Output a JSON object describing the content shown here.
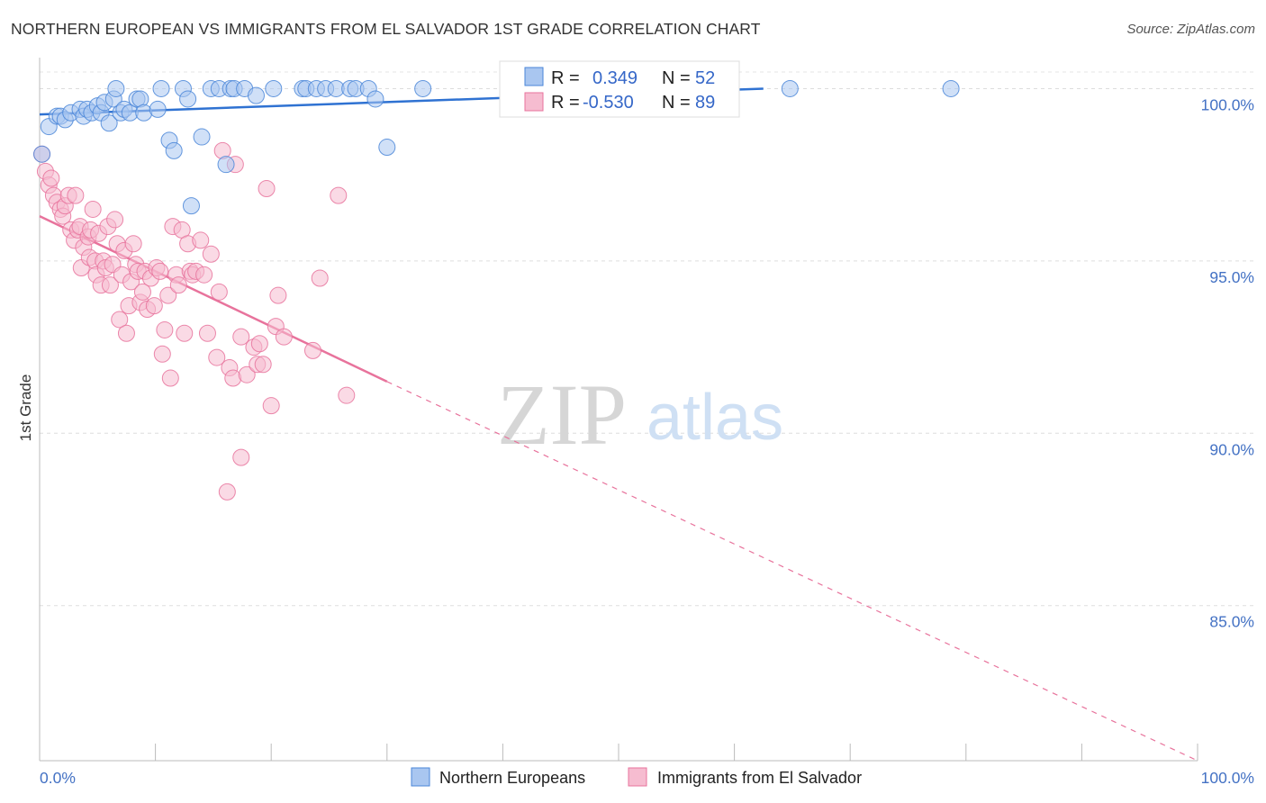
{
  "title": "NORTHERN EUROPEAN VS IMMIGRANTS FROM EL SALVADOR 1ST GRADE CORRELATION CHART",
  "source": "Source: ZipAtlas.com",
  "watermark": {
    "zip": "ZIP",
    "atlas": "atlas"
  },
  "colors": {
    "blue": "#4a86d8",
    "blue_fill": "#a9c6f0",
    "blue_line": "#2f72d2",
    "pink": "#e8739c",
    "pink_fill": "#f6bcd0",
    "pink_line": "#e8739c",
    "axis_text": "#4472c4",
    "grid": "#dddddd"
  },
  "chart_data": {
    "type": "scatter",
    "title": "NORTHERN EUROPEAN VS IMMIGRANTS FROM EL SALVADOR 1ST GRADE CORRELATION CHART",
    "xlabel": "",
    "ylabel": "1st Grade",
    "xlim": [
      0,
      100
    ],
    "ylim": [
      80.5,
      100.9
    ],
    "x_tick_labels": [
      "0.0%",
      "100.0%"
    ],
    "y_ticks": [
      85,
      90,
      95,
      100
    ],
    "y_tick_labels": [
      "85.0%",
      "90.0%",
      "95.0%",
      "100.0%"
    ],
    "grid": true,
    "legend_position": "top-center",
    "stats": [
      {
        "r_label": "R =",
        "r_value": "0.349",
        "n_label": "N =",
        "n_value": "52"
      },
      {
        "r_label": "R =",
        "r_value": "-0.530",
        "n_label": "N =",
        "n_value": "89"
      }
    ],
    "series": [
      {
        "name": "Northern Europeans",
        "color": "#4a86d8",
        "trend": {
          "x": [
            0,
            62.5
          ],
          "y": [
            99.25,
            100.0
          ],
          "dashed_to": null
        },
        "points": [
          [
            0.2,
            98.1
          ],
          [
            0.8,
            98.9
          ],
          [
            1.5,
            99.2
          ],
          [
            1.8,
            99.2
          ],
          [
            2.2,
            99.1
          ],
          [
            2.7,
            99.3
          ],
          [
            3.5,
            99.4
          ],
          [
            3.8,
            99.2
          ],
          [
            4.1,
            99.4
          ],
          [
            4.5,
            99.3
          ],
          [
            5.0,
            99.5
          ],
          [
            5.3,
            99.3
          ],
          [
            5.6,
            99.6
          ],
          [
            6.0,
            99.0
          ],
          [
            6.4,
            99.7
          ],
          [
            6.6,
            100.0
          ],
          [
            7.0,
            99.3
          ],
          [
            7.3,
            99.4
          ],
          [
            7.8,
            99.3
          ],
          [
            8.4,
            99.7
          ],
          [
            8.7,
            99.7
          ],
          [
            9.0,
            99.3
          ],
          [
            10.2,
            99.4
          ],
          [
            10.5,
            100.0
          ],
          [
            11.2,
            98.5
          ],
          [
            11.6,
            98.2
          ],
          [
            12.4,
            100.0
          ],
          [
            12.8,
            99.7
          ],
          [
            13.1,
            96.6
          ],
          [
            14.0,
            98.6
          ],
          [
            14.8,
            100.0
          ],
          [
            15.5,
            100.0
          ],
          [
            16.1,
            97.8
          ],
          [
            16.5,
            100.0
          ],
          [
            16.8,
            100.0
          ],
          [
            17.7,
            100.0
          ],
          [
            18.7,
            99.8
          ],
          [
            20.2,
            100.0
          ],
          [
            22.7,
            100.0
          ],
          [
            23.0,
            100.0
          ],
          [
            23.9,
            100.0
          ],
          [
            24.7,
            100.0
          ],
          [
            25.6,
            100.0
          ],
          [
            26.8,
            100.0
          ],
          [
            27.3,
            100.0
          ],
          [
            28.4,
            100.0
          ],
          [
            29.0,
            99.7
          ],
          [
            30.0,
            98.3
          ],
          [
            33.1,
            100.0
          ],
          [
            43.1,
            100.0
          ],
          [
            64.8,
            100.0
          ],
          [
            78.7,
            100.0
          ]
        ]
      },
      {
        "name": "Immigrants from El Salvador",
        "color": "#e8739c",
        "trend": {
          "x": [
            0,
            30.0
          ],
          "y": [
            96.3,
            91.5
          ],
          "dashed_to": [
            100,
            80.5
          ]
        },
        "points": [
          [
            0.2,
            98.1
          ],
          [
            0.5,
            97.6
          ],
          [
            0.8,
            97.2
          ],
          [
            1.0,
            97.4
          ],
          [
            1.2,
            96.9
          ],
          [
            1.5,
            96.7
          ],
          [
            1.8,
            96.5
          ],
          [
            2.0,
            96.3
          ],
          [
            2.2,
            96.6
          ],
          [
            2.5,
            96.9
          ],
          [
            2.7,
            95.9
          ],
          [
            3.0,
            95.6
          ],
          [
            3.1,
            96.9
          ],
          [
            3.3,
            95.9
          ],
          [
            3.5,
            96.0
          ],
          [
            3.6,
            94.8
          ],
          [
            3.8,
            95.4
          ],
          [
            4.2,
            95.7
          ],
          [
            4.3,
            95.1
          ],
          [
            4.4,
            95.9
          ],
          [
            4.6,
            96.5
          ],
          [
            4.8,
            95.0
          ],
          [
            4.9,
            94.6
          ],
          [
            5.1,
            95.8
          ],
          [
            5.3,
            94.3
          ],
          [
            5.5,
            95.0
          ],
          [
            5.7,
            94.8
          ],
          [
            5.9,
            96.0
          ],
          [
            6.1,
            94.3
          ],
          [
            6.3,
            94.9
          ],
          [
            6.5,
            96.2
          ],
          [
            6.7,
            95.5
          ],
          [
            6.9,
            93.3
          ],
          [
            7.1,
            94.6
          ],
          [
            7.3,
            95.3
          ],
          [
            7.5,
            92.9
          ],
          [
            7.7,
            93.7
          ],
          [
            7.9,
            94.4
          ],
          [
            8.1,
            95.5
          ],
          [
            8.3,
            94.9
          ],
          [
            8.5,
            94.7
          ],
          [
            8.7,
            93.8
          ],
          [
            8.9,
            94.1
          ],
          [
            9.1,
            94.7
          ],
          [
            9.3,
            93.6
          ],
          [
            9.6,
            94.5
          ],
          [
            9.9,
            93.7
          ],
          [
            10.1,
            94.8
          ],
          [
            10.4,
            94.7
          ],
          [
            10.6,
            92.3
          ],
          [
            10.8,
            93.0
          ],
          [
            11.1,
            94.0
          ],
          [
            11.3,
            91.6
          ],
          [
            11.5,
            96.0
          ],
          [
            11.8,
            94.6
          ],
          [
            12.0,
            94.3
          ],
          [
            12.3,
            95.9
          ],
          [
            12.5,
            92.9
          ],
          [
            12.8,
            95.5
          ],
          [
            13.0,
            94.7
          ],
          [
            13.2,
            94.6
          ],
          [
            13.5,
            94.7
          ],
          [
            13.9,
            95.6
          ],
          [
            14.2,
            94.6
          ],
          [
            14.5,
            92.9
          ],
          [
            14.8,
            95.2
          ],
          [
            15.3,
            92.2
          ],
          [
            15.5,
            94.1
          ],
          [
            15.8,
            98.2
          ],
          [
            16.2,
            88.3
          ],
          [
            16.4,
            91.9
          ],
          [
            16.7,
            91.6
          ],
          [
            16.9,
            97.8
          ],
          [
            17.4,
            92.8
          ],
          [
            17.9,
            91.7
          ],
          [
            18.5,
            92.5
          ],
          [
            18.8,
            92.0
          ],
          [
            19.0,
            92.6
          ],
          [
            19.3,
            92.0
          ],
          [
            19.6,
            97.1
          ],
          [
            20.0,
            90.8
          ],
          [
            20.4,
            93.1
          ],
          [
            20.6,
            94.0
          ],
          [
            21.1,
            92.8
          ],
          [
            23.6,
            92.4
          ],
          [
            24.2,
            94.5
          ],
          [
            25.8,
            96.9
          ],
          [
            26.5,
            91.1
          ],
          [
            17.4,
            89.3
          ]
        ]
      }
    ]
  }
}
